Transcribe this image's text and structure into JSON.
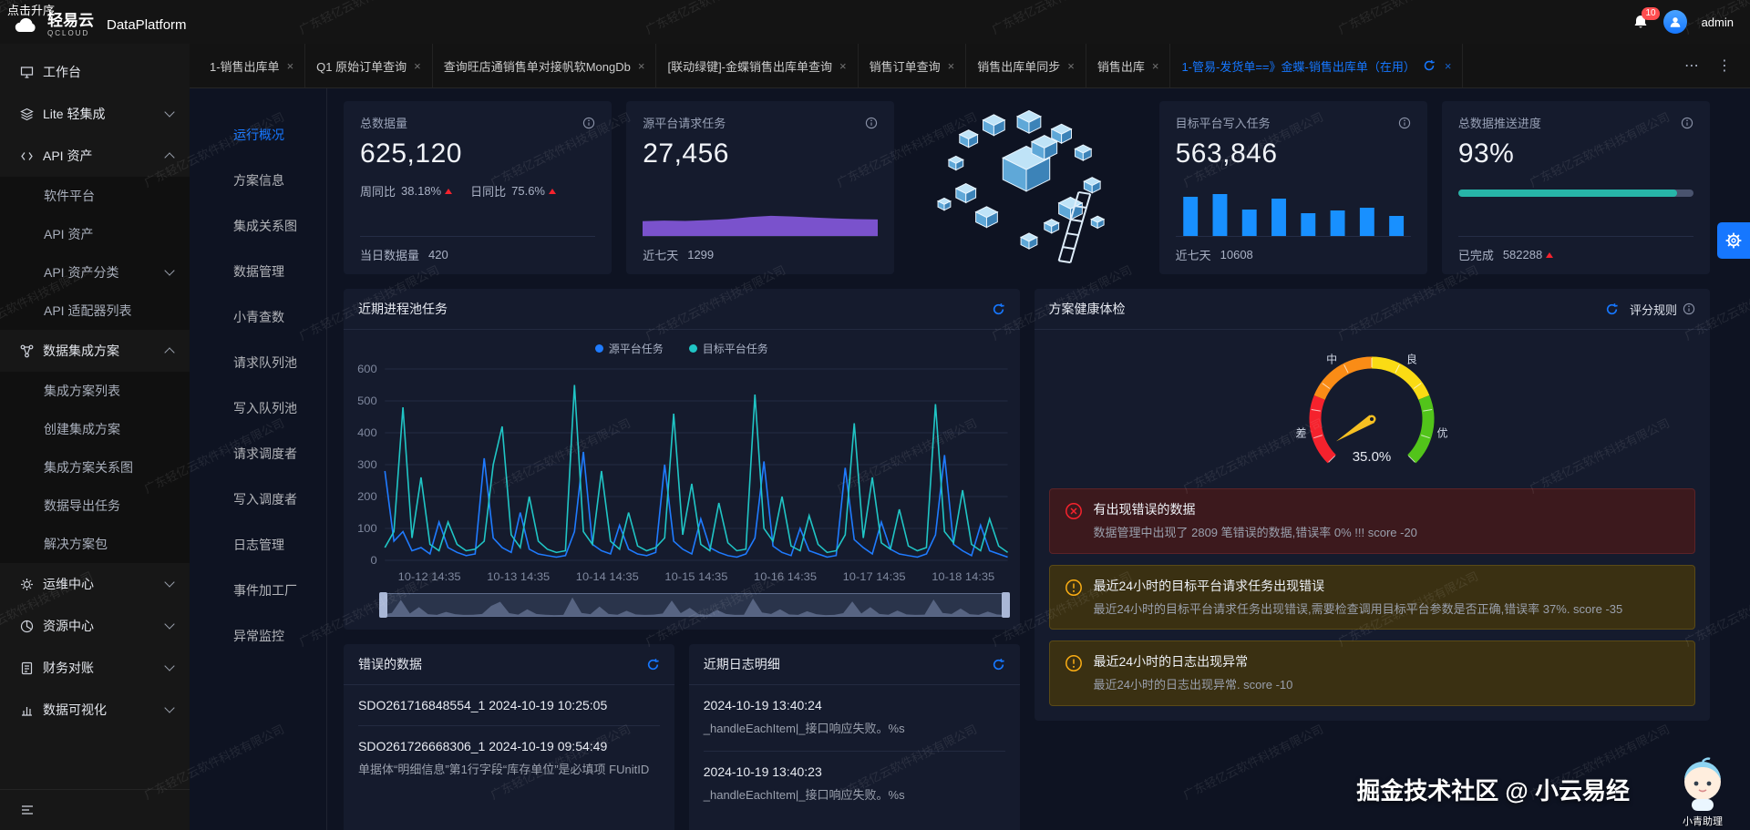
{
  "watermark": {
    "text": "广东轻亿云软件科技有限公司"
  },
  "topbar": {
    "overlay_text": "点击升序",
    "brand": "轻易云",
    "brand_sub": "QCLOUD",
    "product": "DataPlatform",
    "notification_count": "10",
    "username": "admin"
  },
  "sidebar": {
    "workbench": "工作台",
    "lite": "Lite 轻集成",
    "api_assets": "API 资产",
    "api_children": [
      "软件平台",
      "API 资产",
      "API 资产分类",
      "API 适配器列表"
    ],
    "integration": "数据集成方案",
    "integration_children": [
      "集成方案列表",
      "创建集成方案",
      "集成方案关系图",
      "数据导出任务",
      "解决方案包"
    ],
    "ops": "运维中心",
    "resource": "资源中心",
    "finance": "财务对账",
    "viz": "数据可视化"
  },
  "tabs": {
    "items": [
      "1-销售出库单",
      "Q1 原始订单查询",
      "查询旺店通销售单对接帆软MongDb",
      "[联动绿键]-金蝶销售出库单查询",
      "销售订单查询",
      "销售出库单同步",
      "销售出库",
      "1-管易-发货单==》金蝶-销售出库单（在用）"
    ],
    "active_index": 7
  },
  "submenu": {
    "items": [
      "运行概况",
      "方案信息",
      "集成关系图",
      "数据管理",
      "小青查数",
      "请求队列池",
      "写入队列池",
      "请求调度者",
      "写入调度者",
      "日志管理",
      "事件加工厂",
      "异常监控"
    ],
    "active": "运行概况"
  },
  "stats": {
    "card1": {
      "title": "总数据量",
      "value": "625,120",
      "week_label": "周同比",
      "week_value": "38.18%",
      "day_label": "日同比",
      "day_value": "75.6%",
      "footer_label": "当日数据量",
      "footer_value": "420"
    },
    "card2": {
      "title": "源平台请求任务",
      "value": "27,456",
      "footer_label": "近七天",
      "footer_value": "1299"
    },
    "card3": {
      "title": "目标平台写入任务",
      "value": "563,846",
      "footer_label": "近七天",
      "footer_value": "10608"
    },
    "card4": {
      "title": "总数据推送进度",
      "value": "93%",
      "footer_label": "已完成",
      "footer_value": "582288"
    }
  },
  "panels": {
    "process_pool": {
      "title": "近期进程池任务",
      "legend": [
        "源平台任务",
        "目标平台任务"
      ]
    },
    "health": {
      "title": "方案健康体检",
      "rules_link": "评分规则",
      "alerts": [
        {
          "type": "error",
          "title": "有出现错误的数据",
          "desc": "数据管理中出现了 2809 笔错误的数据,错误率 0% !!! score -20"
        },
        {
          "type": "warning",
          "title": "最近24小时的目标平台请求任务出现错误",
          "desc": "最近24小时的目标平台请求任务出现错误,需要检查调用目标平台参数是否正确,错误率 37%. score -35"
        },
        {
          "type": "warning",
          "title": "最近24小时的日志出现异常",
          "desc": "最近24小时的日志出现异常. score -10"
        }
      ]
    },
    "error_data": {
      "title": "错误的数据",
      "items": [
        {
          "title": "SDO261716848554_1 2024-10-19 10:25:05"
        },
        {
          "title": "SDO261726668306_1 2024-10-19 09:54:49",
          "desc": "单据体“明细信息”第1行字段“库存单位”是必填项 FUnitID"
        }
      ]
    },
    "logs": {
      "title": "近期日志明细",
      "items": [
        {
          "time": "2024-10-19 13:40:24",
          "desc": "_handleEachItem|_接口响应失败。%s"
        },
        {
          "time": "2024-10-19 13:40:23",
          "desc": "_handleEachItem|_接口响应失败。%s"
        }
      ]
    }
  },
  "footer": {
    "credit": "掘金技术社区 @ 小云易经",
    "mascot_label": "小青助理"
  },
  "chart_data": [
    {
      "type": "area",
      "name": "source-request-trend",
      "color": "#7a52cc",
      "values": [
        9,
        9.3,
        9.1,
        9.6,
        10.2,
        11.4,
        12.2,
        11.8,
        11.2,
        10.6,
        10.2,
        10
      ]
    },
    {
      "type": "bar",
      "name": "target-write-bars",
      "color": "#1890ff",
      "values": [
        86,
        92,
        58,
        82,
        50,
        56,
        62,
        44
      ]
    },
    {
      "type": "line",
      "title": "近期进程池任务",
      "x_labels": [
        "10-12 14:35",
        "10-13 14:35",
        "10-14 14:35",
        "10-15 14:35",
        "10-16 14:35",
        "10-17 14:35",
        "10-18 14:35"
      ],
      "ylim": [
        0,
        600
      ],
      "yticks": [
        0,
        100,
        200,
        300,
        400,
        500,
        600
      ],
      "series": [
        {
          "name": "源平台任务",
          "color": "#1f7bff",
          "values": [
            280,
            60,
            90,
            30,
            40,
            20,
            120,
            40,
            25,
            15,
            20,
            320,
            70,
            40,
            25,
            150,
            35,
            20,
            15,
            10,
            15,
            90,
            340,
            50,
            30,
            20,
            110,
            35,
            20,
            15,
            25,
            300,
            60,
            35,
            20,
            130,
            40,
            25,
            15,
            10,
            20,
            70,
            310,
            45,
            25,
            15,
            100,
            30,
            20,
            10,
            15,
            290,
            65,
            40,
            20,
            120,
            35,
            20,
            15,
            10,
            20,
            80,
            330,
            50,
            30,
            15,
            110,
            30,
            20,
            10
          ]
        },
        {
          "name": "目标平台任务",
          "color": "#20c5c5",
          "values": [
            40,
            90,
            480,
            70,
            260,
            50,
            30,
            120,
            50,
            30,
            35,
            60,
            300,
            420,
            80,
            40,
            200,
            60,
            35,
            25,
            30,
            550,
            90,
            50,
            280,
            60,
            35,
            150,
            45,
            30,
            40,
            70,
            460,
            80,
            240,
            50,
            30,
            180,
            55,
            30,
            35,
            520,
            100,
            60,
            200,
            45,
            30,
            140,
            50,
            25,
            30,
            80,
            430,
            70,
            260,
            55,
            35,
            160,
            45,
            30,
            40,
            490,
            90,
            55,
            220,
            50,
            30,
            130,
            45,
            25
          ]
        }
      ]
    },
    {
      "type": "gauge",
      "title": "方案健康体检",
      "value": 35.0,
      "min": 0,
      "max": 100,
      "label": "35.0%",
      "segments": [
        {
          "label": "差",
          "color": "#f5222d"
        },
        {
          "label": "中",
          "color": "#fa8c16"
        },
        {
          "label": "良",
          "color": "#fadb14"
        },
        {
          "label": "优",
          "color": "#52c41a"
        }
      ]
    },
    {
      "type": "progress",
      "name": "push-progress",
      "value": 93,
      "color": "#27b5a8"
    }
  ]
}
